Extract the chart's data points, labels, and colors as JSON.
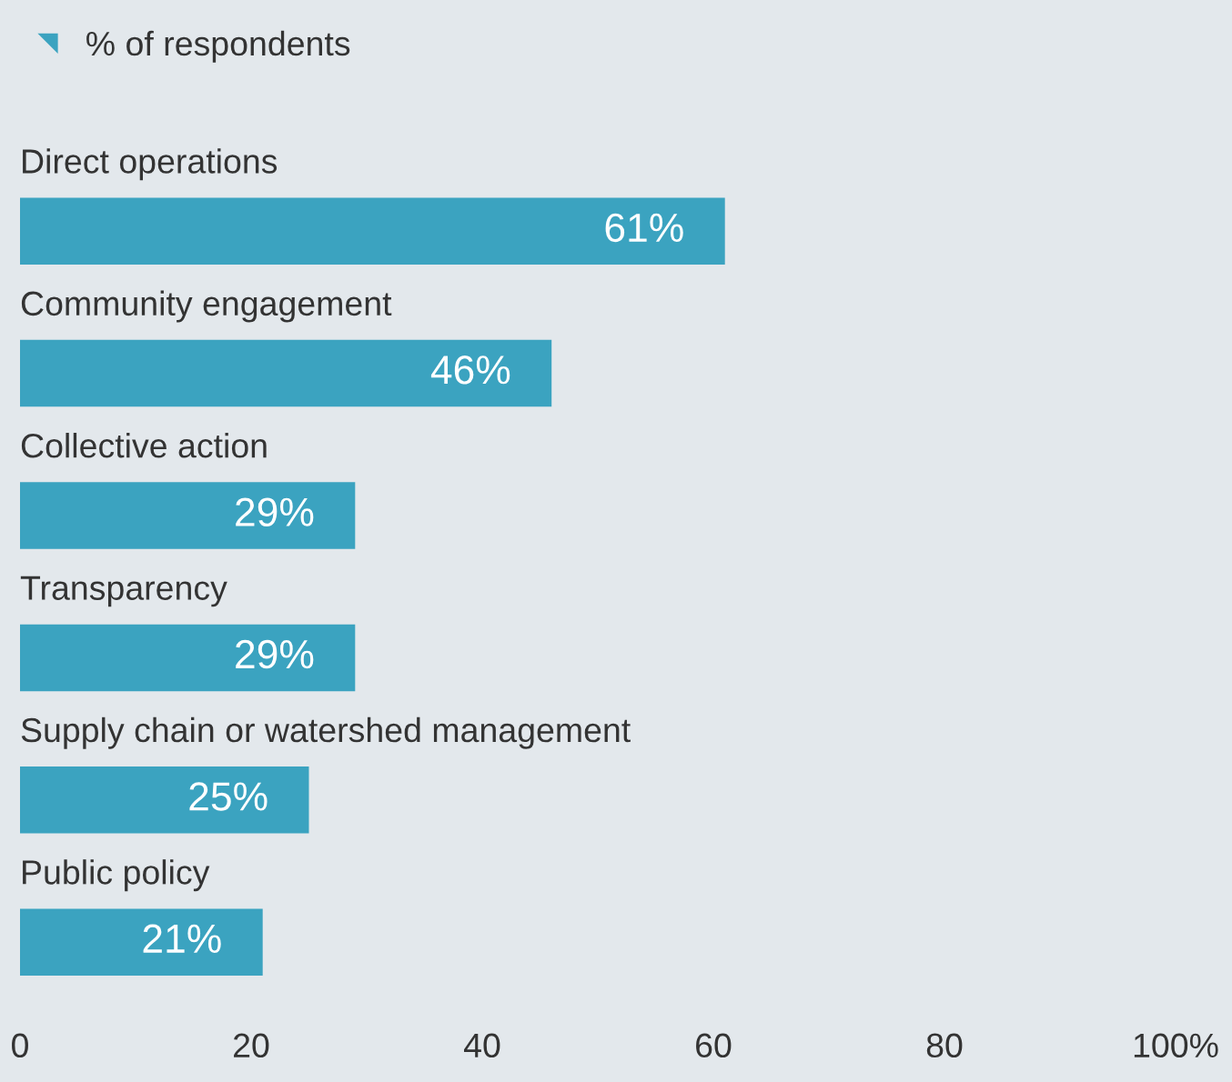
{
  "chart_data": {
    "type": "bar",
    "orientation": "horizontal",
    "categories": [
      "Direct operations",
      "Community engagement",
      "Collective action",
      "Transparency",
      "Supply chain or watershed management",
      "Public policy"
    ],
    "series": [
      {
        "name": "% of respondents",
        "color": "#3ba3c0",
        "values": [
          61,
          46,
          29,
          29,
          25,
          21
        ],
        "value_labels": [
          "61%",
          "46%",
          "29%",
          "29%",
          "25%",
          "21%"
        ]
      }
    ],
    "xlim": [
      0,
      100
    ],
    "xticks": [
      0,
      20,
      40,
      60,
      80,
      {
        "value": 100,
        "label": "100%"
      }
    ],
    "legend": "top left",
    "grid": false
  }
}
